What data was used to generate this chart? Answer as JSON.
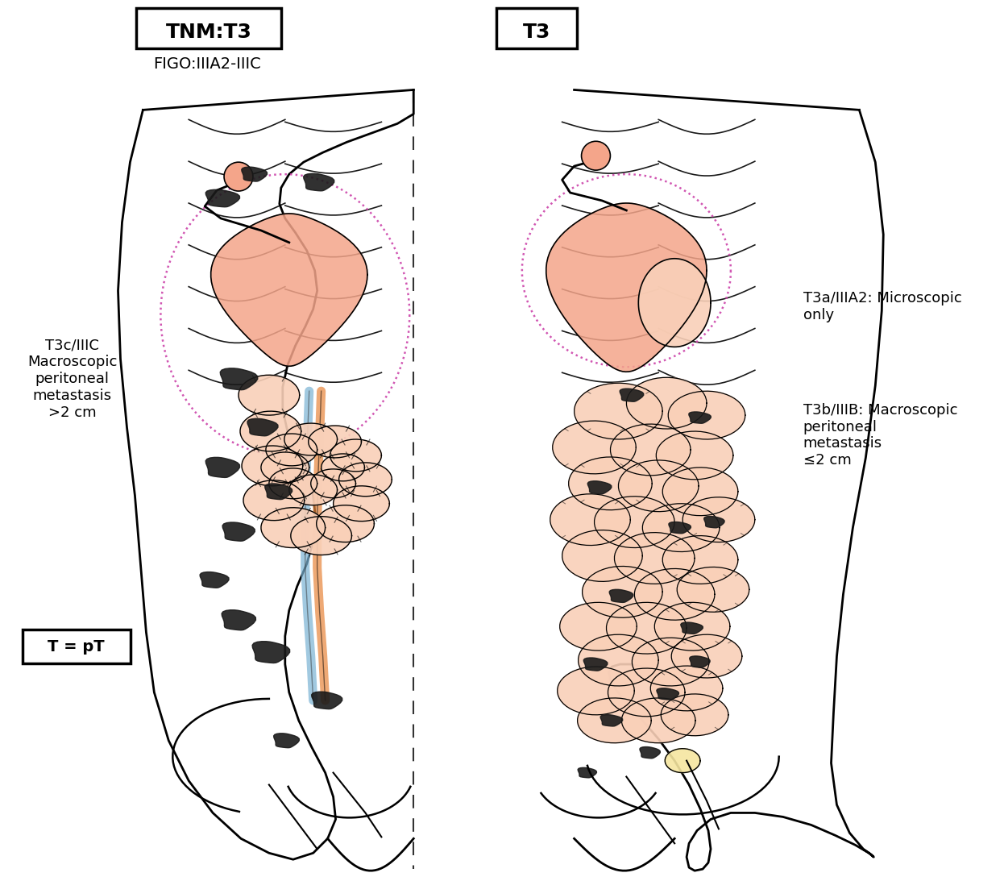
{
  "title_left": "TNM:T3",
  "title_right": "T3",
  "subtitle_left": "FIGO:IIIA2-IIIC",
  "label_left": "T3c/IIIC\nMacroscopic\nperitoneal\nmetastasis\n>2 cm",
  "label_bottom_left": "T = pT",
  "label_right_top": "T3a/IIIA2: Microscopic\nonly",
  "label_right_bottom": "T3b/IIIB: Macroscopic\nperitoneal\nmetastasis\n≤2 cm",
  "background_color": "#ffffff",
  "body_outline_color": "#000000",
  "organ_fill_pink": "#f4a58a",
  "organ_fill_light": "#f9d0b8",
  "tumor_color": "#1a1a1a",
  "dotted_line_color": "#cc44aa",
  "dashed_divider_color": "#333333",
  "blue_tube_color": "#7ab3d4",
  "orange_tube_color": "#e8853a"
}
